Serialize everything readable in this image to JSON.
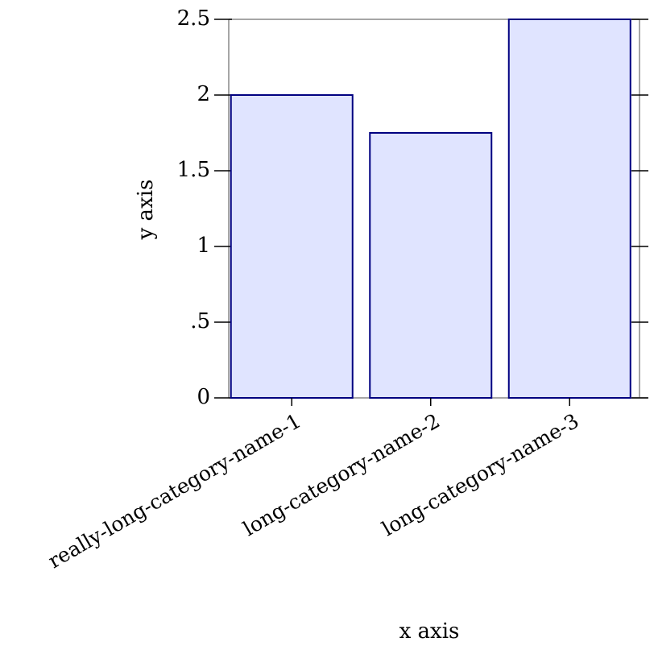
{
  "chart_data": {
    "type": "bar",
    "categories": [
      "really-long-category-name-1",
      "long-category-name-2",
      "long-category-name-3"
    ],
    "values": [
      2,
      1.75,
      2.5
    ],
    "color": "#e0e4ff",
    "edge_color": "#000080",
    "x_label": "x axis",
    "y_label": "y axis",
    "ylim": [
      0,
      2.5
    ],
    "yticks": [
      0,
      {
        "value": 0.5,
        "label": ".5"
      },
      1,
      1.5,
      2,
      2.5
    ]
  }
}
